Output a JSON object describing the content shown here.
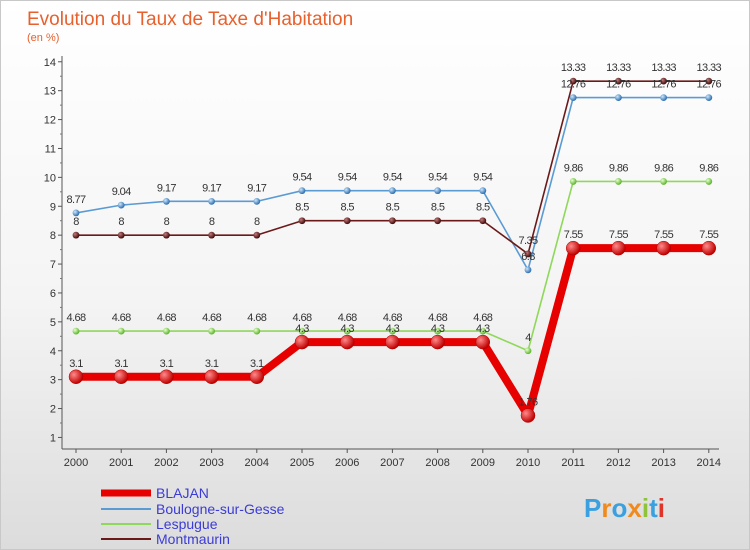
{
  "chart_data": {
    "type": "line",
    "title": "Evolution du Taux de Taxe d'Habitation",
    "subtitle": "(en %)",
    "xlabel": "",
    "ylabel": "",
    "x": [
      "2000",
      "2001",
      "2002",
      "2003",
      "2004",
      "2005",
      "2006",
      "2007",
      "2008",
      "2009",
      "2010",
      "2011",
      "2012",
      "2013",
      "2014"
    ],
    "yticks": [
      "1",
      "2",
      "3",
      "4",
      "5",
      "6",
      "7",
      "8",
      "9",
      "10",
      "11",
      "12",
      "13",
      "14"
    ],
    "ylim": [
      0.6,
      14.2
    ],
    "grid": false,
    "legend_position": "bottom-left",
    "series": [
      {
        "name": "BLAJAN",
        "color": "#e60000",
        "values": [
          3.1,
          3.1,
          3.1,
          3.1,
          3.1,
          4.3,
          4.3,
          4.3,
          4.3,
          4.3,
          1.76,
          7.55,
          7.55,
          7.55,
          7.55
        ],
        "labels": [
          "3.1",
          "3.1",
          "3.1",
          "3.1",
          "3.1",
          "4.3",
          "4.3",
          "4.3",
          "4.3",
          "4.3",
          "1.76",
          "7.55",
          "7.55",
          "7.55",
          "7.55"
        ]
      },
      {
        "name": "Boulogne-sur-Gesse",
        "color": "#5a9bd4",
        "values": [
          8.77,
          9.04,
          9.17,
          9.17,
          9.17,
          9.54,
          9.54,
          9.54,
          9.54,
          9.54,
          6.8,
          12.76,
          12.76,
          12.76,
          12.76
        ],
        "labels": [
          "8.77",
          "9.04",
          "9.17",
          "9.17",
          "9.17",
          "9.54",
          "9.54",
          "9.54",
          "9.54",
          "9.54",
          "6.8",
          "12.76",
          "12.76",
          "12.76",
          "12.76"
        ]
      },
      {
        "name": "Lespugue",
        "color": "#8fd85a",
        "values": [
          4.68,
          4.68,
          4.68,
          4.68,
          4.68,
          4.68,
          4.68,
          4.68,
          4.68,
          4.68,
          4,
          9.86,
          9.86,
          9.86,
          9.86
        ],
        "labels": [
          "4.68",
          "4.68",
          "4.68",
          "4.68",
          "4.68",
          "4.68",
          "4.68",
          "4.68",
          "4.68",
          "4.68",
          "4",
          "9.86",
          "9.86",
          "9.86",
          "9.86"
        ]
      },
      {
        "name": "Montmaurin",
        "color": "#6b1a1a",
        "values": [
          8,
          8,
          8,
          8,
          8,
          8.5,
          8.5,
          8.5,
          8.5,
          8.5,
          7.35,
          13.33,
          13.33,
          13.33,
          13.33
        ],
        "labels": [
          "8",
          "8",
          "8",
          "8",
          "8",
          "8.5",
          "8.5",
          "8.5",
          "8.5",
          "8.5",
          "7.35",
          "13.33",
          "13.33",
          "13.33",
          "13.33"
        ]
      }
    ]
  },
  "logo": {
    "text": "Proxiti",
    "letters": [
      "P",
      "r",
      "o",
      "x",
      "i",
      "t",
      "i"
    ],
    "colors": [
      "#3aa0e0",
      "#f08a1c",
      "#3aa0e0",
      "#f08a1c",
      "#8fc43a",
      "#3aa0e0",
      "#e0342a"
    ]
  }
}
